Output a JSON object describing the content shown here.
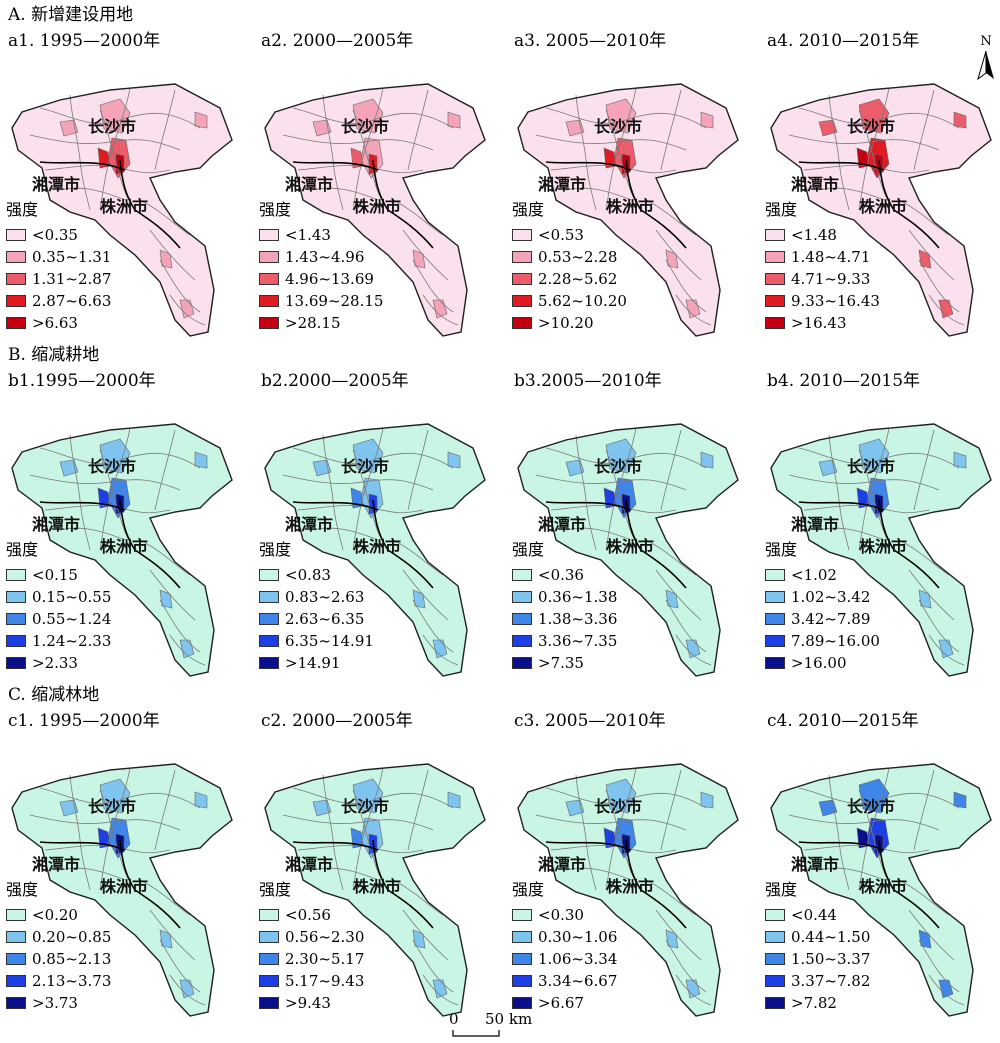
{
  "sections": [
    {
      "title": "A. 新增建设用地",
      "colors": [
        "#fbe0ee",
        "#f5a3b8",
        "#ec5d6c",
        "#e11b22",
        "#c20011"
      ],
      "panels": [
        {
          "title": "a1. 1995—2000年",
          "legend": [
            "<0.35",
            "0.35~1.31",
            "1.31~2.87",
            "2.87~6.63",
            ">6.63"
          ]
        },
        {
          "title": "a2. 2000—2005年",
          "legend": [
            "<1.43",
            "1.43~4.96",
            "4.96~13.69",
            "13.69~28.15",
            ">28.15"
          ]
        },
        {
          "title": "a3. 2005—2010年",
          "legend": [
            "<0.53",
            "0.53~2.28",
            "2.28~5.62",
            "5.62~10.20",
            ">10.20"
          ]
        },
        {
          "title": "a4. 2010—2015年",
          "legend": [
            "<1.48",
            "1.48~4.71",
            "4.71~9.33",
            "9.33~16.43",
            ">16.43"
          ]
        }
      ]
    },
    {
      "title": "B. 缩减耕地",
      "colors": [
        "#c8f5e4",
        "#7ec4ee",
        "#3f86e8",
        "#1d3fe6",
        "#0a0f8c"
      ],
      "panels": [
        {
          "title": "b1.1995—2000年",
          "legend": [
            "<0.15",
            "0.15~0.55",
            "0.55~1.24",
            "1.24~2.33",
            ">2.33"
          ]
        },
        {
          "title": "b2.2000—2005年",
          "legend": [
            "<0.83",
            "0.83~2.63",
            "2.63~6.35",
            "6.35~14.91",
            ">14.91"
          ]
        },
        {
          "title": "b3.2005—2010年",
          "legend": [
            "<0.36",
            "0.36~1.38",
            "1.38~3.36",
            "3.36~7.35",
            ">7.35"
          ]
        },
        {
          "title": "b4. 2010—2015年",
          "legend": [
            "<1.02",
            "1.02~3.42",
            "3.42~7.89",
            "7.89~16.00",
            ">16.00"
          ]
        }
      ]
    },
    {
      "title": "C. 缩减林地",
      "colors": [
        "#c8f5e4",
        "#7ec4ee",
        "#3f86e8",
        "#1d3fe6",
        "#0a0f8c"
      ],
      "panels": [
        {
          "title": "c1. 1995—2000年",
          "legend": [
            "<0.20",
            "0.20~0.85",
            "0.85~2.13",
            "2.13~3.73",
            ">3.73"
          ]
        },
        {
          "title": "c2. 2000—2005年",
          "legend": [
            "<0.56",
            "0.56~2.30",
            "2.30~5.17",
            "5.17~9.43",
            ">9.43"
          ]
        },
        {
          "title": "c3. 2005—2010年",
          "legend": [
            "<0.30",
            "0.30~1.06",
            "1.06~3.34",
            "3.34~6.67",
            ">6.67"
          ]
        },
        {
          "title": "c4. 2010—2015年",
          "legend": [
            "<0.44",
            "0.44~1.50",
            "1.50~3.37",
            "3.37~7.82",
            ">7.82"
          ]
        }
      ]
    }
  ],
  "legend_title": "强度",
  "cities": [
    "长沙市",
    "湘潭市",
    "株洲市"
  ],
  "north_label": "N",
  "scale": {
    "zero": "0",
    "value": "50 km"
  }
}
